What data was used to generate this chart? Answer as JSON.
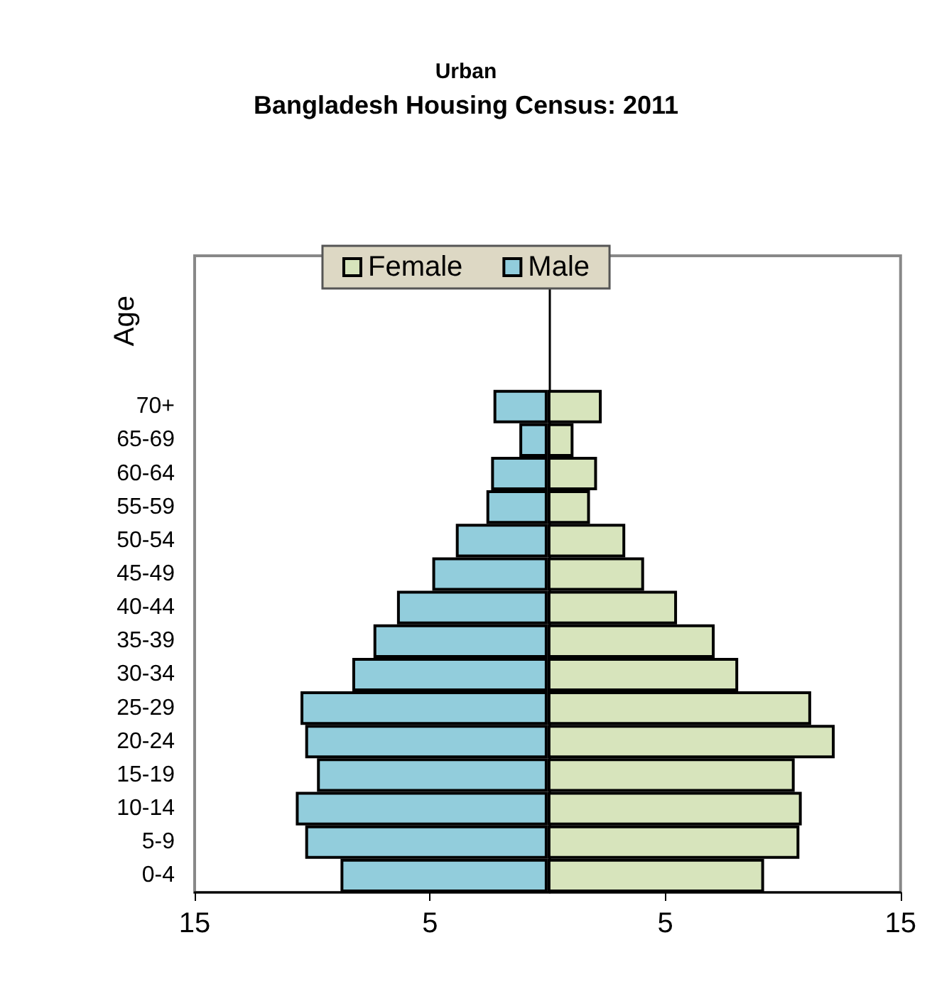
{
  "chart_data": {
    "type": "bar",
    "orientation": "horizontal",
    "stacked": true,
    "subtitle": "Urban",
    "title": "Bangladesh Housing Census: 2011",
    "ylabel": "Age",
    "categories": [
      null,
      null,
      null,
      null,
      "70+",
      "65-69",
      "60-64",
      "55-59",
      "50-54",
      "45-49",
      "40-44",
      "35-39",
      "30-34",
      "25-29",
      "20-24",
      "15-19",
      "10-14",
      "5-9",
      "0-4"
    ],
    "series": [
      {
        "name": "Female",
        "color": "#d7e4bc",
        "values": [
          null,
          null,
          null,
          null,
          2.3,
          1.1,
          2.1,
          1.8,
          3.3,
          4.1,
          5.5,
          7.1,
          8.1,
          11.2,
          12.2,
          10.5,
          10.8,
          10.7,
          9.2
        ]
      },
      {
        "name": "Male",
        "color": "#92cddc",
        "values": [
          null,
          null,
          null,
          null,
          -2.3,
          -1.2,
          -2.4,
          -2.6,
          -3.9,
          -4.9,
          -6.4,
          -7.4,
          -8.3,
          -10.5,
          -10.3,
          -9.8,
          -10.7,
          -10.3,
          -8.8
        ]
      }
    ],
    "xlim": [
      -15,
      15
    ],
    "xticks": [
      {
        "value": -15,
        "label": "15"
      },
      {
        "value": -5,
        "label": "5"
      },
      {
        "value": 5,
        "label": "5"
      },
      {
        "value": 15,
        "label": "15"
      }
    ],
    "grid": false,
    "legend": "top"
  }
}
